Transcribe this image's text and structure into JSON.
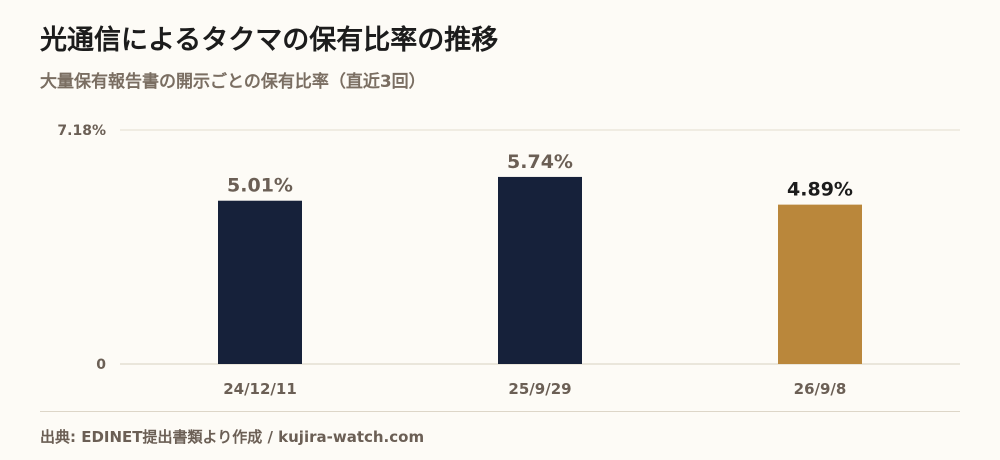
{
  "header": {
    "title": "光通信によるタクマの保有比率の推移",
    "subtitle": "大量保有報告書の開示ごとの保有比率（直近3回）"
  },
  "chart_data": {
    "type": "bar",
    "categories": [
      "24/12/11",
      "25/9/29",
      "26/9/8"
    ],
    "values": [
      5.01,
      5.74,
      4.89
    ],
    "value_labels": [
      "5.01%",
      "5.74%",
      "4.89%"
    ],
    "ylim": [
      0,
      7.18
    ],
    "y_ticks": [
      {
        "value": 0,
        "label": "0"
      },
      {
        "value": 7.18,
        "label": "7.18%"
      }
    ],
    "grid": true,
    "legend": "none",
    "bar_colors": [
      "#16213a",
      "#16213a",
      "#ba873b"
    ],
    "value_label_colors": [
      "#6b5f55",
      "#6b5f55",
      "#1c1c1c"
    ]
  },
  "footer": {
    "source": "出典: EDINET提出書類より作成 / kujira-watch.com"
  }
}
